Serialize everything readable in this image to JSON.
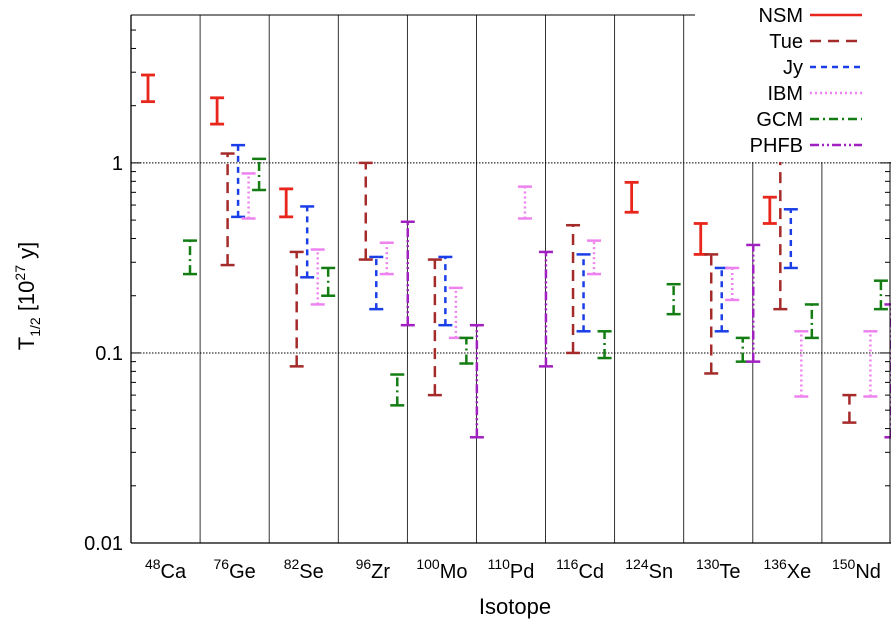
{
  "chart_data": {
    "type": "range-errorbar",
    "title": "",
    "xlabel": "Isotope",
    "ylabel": {
      "base": "T",
      "sub": "1/2",
      "mid": " [10",
      "sup": "27",
      "end": " y]"
    },
    "yscale": "log",
    "ylim": [
      0.01,
      6
    ],
    "yticks": [
      {
        "value": 0.01,
        "label": "0.01"
      },
      {
        "value": 0.1,
        "label": "0.1"
      },
      {
        "value": 1,
        "label": "1"
      }
    ],
    "grid": "horizontal at 0.1 and 1, vertical separators between isotopes",
    "legend": "top-right",
    "categories": [
      {
        "mass": "48",
        "el": "Ca"
      },
      {
        "mass": "76",
        "el": "Ge"
      },
      {
        "mass": "82",
        "el": "Se"
      },
      {
        "mass": "96",
        "el": "Zr"
      },
      {
        "mass": "100",
        "el": "Mo"
      },
      {
        "mass": "110",
        "el": "Pd"
      },
      {
        "mass": "116",
        "el": "Cd"
      },
      {
        "mass": "124",
        "el": "Sn"
      },
      {
        "mass": "130",
        "el": "Te"
      },
      {
        "mass": "136",
        "el": "Xe"
      },
      {
        "mass": "150",
        "el": "Nd"
      }
    ],
    "series": [
      {
        "name": "NSM",
        "color": "#e8261c",
        "dash": "solid",
        "offset": 0,
        "ranges": [
          [
            2.1,
            2.9
          ],
          [
            1.6,
            2.2
          ],
          [
            0.52,
            0.73
          ],
          null,
          null,
          null,
          null,
          [
            0.55,
            0.79
          ],
          [
            0.33,
            0.48
          ],
          [
            0.48,
            0.66
          ],
          null
        ]
      },
      {
        "name": "Tue",
        "color": "#a52a2a",
        "dash": "long",
        "offset": 1,
        "ranges": [
          null,
          [
            0.29,
            1.12
          ],
          [
            0.085,
            0.34
          ],
          [
            0.31,
            1.0
          ],
          [
            0.06,
            0.31
          ],
          null,
          [
            0.1,
            0.47
          ],
          null,
          [
            0.078,
            0.33
          ],
          [
            0.17,
            1.08
          ],
          [
            0.043,
            0.06
          ]
        ]
      },
      {
        "name": "Jy",
        "color": "#1a3ee8",
        "dash": "short",
        "offset": 2,
        "ranges": [
          null,
          [
            0.52,
            1.24
          ],
          [
            0.25,
            0.59
          ],
          [
            0.17,
            0.32
          ],
          [
            0.14,
            0.32
          ],
          null,
          [
            0.13,
            0.33
          ],
          null,
          [
            0.13,
            0.28
          ],
          [
            0.28,
            0.57
          ],
          null
        ]
      },
      {
        "name": "IBM",
        "color": "#ee82ee",
        "dash": "dot",
        "offset": 3,
        "ranges": [
          null,
          [
            0.51,
            0.88
          ],
          [
            0.18,
            0.35
          ],
          [
            0.26,
            0.38
          ],
          [
            0.12,
            0.22
          ],
          [
            0.51,
            0.75
          ],
          [
            0.26,
            0.39
          ],
          null,
          [
            0.19,
            0.28
          ],
          [
            0.059,
            0.13
          ],
          [
            0.059,
            0.13
          ]
        ]
      },
      {
        "name": "GCM",
        "color": "#137d13",
        "dash": "dashdot",
        "offset": 4,
        "ranges": [
          [
            0.26,
            0.39
          ],
          [
            0.72,
            1.05
          ],
          [
            0.2,
            0.28
          ],
          [
            0.053,
            0.077
          ],
          [
            0.088,
            0.12
          ],
          null,
          [
            0.094,
            0.13
          ],
          [
            0.16,
            0.23
          ],
          [
            0.09,
            0.12
          ],
          [
            0.12,
            0.18
          ],
          [
            0.17,
            0.24
          ]
        ]
      },
      {
        "name": "PHFB",
        "color": "#a020c0",
        "dash": "dashdotdot",
        "offset": 5,
        "ranges": [
          null,
          null,
          null,
          [
            0.14,
            0.49
          ],
          [
            0.036,
            0.14
          ],
          [
            0.085,
            0.34
          ],
          null,
          null,
          [
            0.09,
            0.37
          ],
          null,
          [
            0.036,
            0.18
          ]
        ]
      }
    ]
  }
}
